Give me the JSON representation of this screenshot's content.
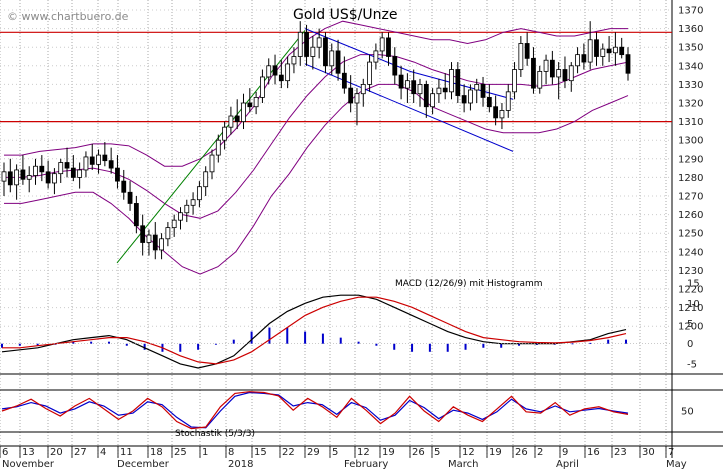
{
  "chart_data": {
    "type": "candlestick",
    "watermark": "© www.chartbuero.de",
    "title": "Gold US$/Unze",
    "y_axis": {
      "ticks": [
        1200,
        1210,
        1220,
        1230,
        1240,
        1250,
        1260,
        1270,
        1280,
        1290,
        1300,
        1310,
        1320,
        1330,
        1340,
        1350,
        1360,
        1370
      ],
      "range": [
        1198,
        1373
      ]
    },
    "horizontal_lines": [
      1358,
      1310
    ],
    "x_day_labels": [
      "6",
      "13",
      "20",
      "27",
      "4",
      "11",
      "18",
      "25",
      "1",
      "8",
      "15",
      "22",
      "29",
      "5",
      "12",
      "19",
      "26",
      "5",
      "12",
      "19",
      "26",
      "2",
      "9",
      "16",
      "23",
      "30",
      "7"
    ],
    "x_month_labels": [
      "November",
      "December",
      "2018",
      "February",
      "March",
      "April",
      "May"
    ],
    "candles": [
      {
        "o": 1278,
        "h": 1288,
        "l": 1270,
        "c": 1283
      },
      {
        "o": 1283,
        "h": 1290,
        "l": 1272,
        "c": 1276
      },
      {
        "o": 1276,
        "h": 1287,
        "l": 1268,
        "c": 1284
      },
      {
        "o": 1284,
        "h": 1292,
        "l": 1276,
        "c": 1279
      },
      {
        "o": 1279,
        "h": 1286,
        "l": 1272,
        "c": 1281
      },
      {
        "o": 1281,
        "h": 1290,
        "l": 1276,
        "c": 1286
      },
      {
        "o": 1286,
        "h": 1292,
        "l": 1278,
        "c": 1283
      },
      {
        "o": 1283,
        "h": 1289,
        "l": 1274,
        "c": 1277
      },
      {
        "o": 1277,
        "h": 1285,
        "l": 1271,
        "c": 1282
      },
      {
        "o": 1282,
        "h": 1290,
        "l": 1277,
        "c": 1288
      },
      {
        "o": 1288,
        "h": 1296,
        "l": 1280,
        "c": 1285
      },
      {
        "o": 1285,
        "h": 1292,
        "l": 1278,
        "c": 1280
      },
      {
        "o": 1280,
        "h": 1288,
        "l": 1274,
        "c": 1284
      },
      {
        "o": 1284,
        "h": 1294,
        "l": 1280,
        "c": 1291
      },
      {
        "o": 1291,
        "h": 1298,
        "l": 1284,
        "c": 1287
      },
      {
        "o": 1287,
        "h": 1295,
        "l": 1282,
        "c": 1292
      },
      {
        "o": 1292,
        "h": 1299,
        "l": 1286,
        "c": 1289
      },
      {
        "o": 1289,
        "h": 1296,
        "l": 1282,
        "c": 1285
      },
      {
        "o": 1285,
        "h": 1292,
        "l": 1274,
        "c": 1278
      },
      {
        "o": 1278,
        "h": 1284,
        "l": 1268,
        "c": 1272
      },
      {
        "o": 1272,
        "h": 1278,
        "l": 1262,
        "c": 1266
      },
      {
        "o": 1266,
        "h": 1270,
        "l": 1250,
        "c": 1254
      },
      {
        "o": 1254,
        "h": 1260,
        "l": 1238,
        "c": 1245
      },
      {
        "o": 1245,
        "h": 1252,
        "l": 1238,
        "c": 1249
      },
      {
        "o": 1249,
        "h": 1256,
        "l": 1236,
        "c": 1241
      },
      {
        "o": 1241,
        "h": 1250,
        "l": 1236,
        "c": 1247
      },
      {
        "o": 1247,
        "h": 1256,
        "l": 1243,
        "c": 1253
      },
      {
        "o": 1253,
        "h": 1260,
        "l": 1248,
        "c": 1257
      },
      {
        "o": 1257,
        "h": 1264,
        "l": 1252,
        "c": 1261
      },
      {
        "o": 1261,
        "h": 1268,
        "l": 1256,
        "c": 1265
      },
      {
        "o": 1265,
        "h": 1272,
        "l": 1260,
        "c": 1268
      },
      {
        "o": 1268,
        "h": 1278,
        "l": 1264,
        "c": 1275
      },
      {
        "o": 1275,
        "h": 1286,
        "l": 1270,
        "c": 1283
      },
      {
        "o": 1283,
        "h": 1295,
        "l": 1279,
        "c": 1292
      },
      {
        "o": 1292,
        "h": 1303,
        "l": 1288,
        "c": 1300
      },
      {
        "o": 1300,
        "h": 1310,
        "l": 1295,
        "c": 1307
      },
      {
        "o": 1307,
        "h": 1318,
        "l": 1303,
        "c": 1313
      },
      {
        "o": 1313,
        "h": 1322,
        "l": 1306,
        "c": 1310
      },
      {
        "o": 1310,
        "h": 1325,
        "l": 1306,
        "c": 1320
      },
      {
        "o": 1320,
        "h": 1328,
        "l": 1315,
        "c": 1318
      },
      {
        "o": 1318,
        "h": 1326,
        "l": 1314,
        "c": 1323
      },
      {
        "o": 1323,
        "h": 1338,
        "l": 1320,
        "c": 1334
      },
      {
        "o": 1334,
        "h": 1344,
        "l": 1330,
        "c": 1340
      },
      {
        "o": 1340,
        "h": 1346,
        "l": 1330,
        "c": 1335
      },
      {
        "o": 1335,
        "h": 1343,
        "l": 1328,
        "c": 1332
      },
      {
        "o": 1332,
        "h": 1345,
        "l": 1328,
        "c": 1341
      },
      {
        "o": 1341,
        "h": 1350,
        "l": 1336,
        "c": 1345
      },
      {
        "o": 1345,
        "h": 1364,
        "l": 1340,
        "c": 1358
      },
      {
        "o": 1358,
        "h": 1362,
        "l": 1340,
        "c": 1345
      },
      {
        "o": 1345,
        "h": 1356,
        "l": 1338,
        "c": 1350
      },
      {
        "o": 1350,
        "h": 1360,
        "l": 1344,
        "c": 1355
      },
      {
        "o": 1355,
        "h": 1358,
        "l": 1336,
        "c": 1340
      },
      {
        "o": 1340,
        "h": 1352,
        "l": 1335,
        "c": 1348
      },
      {
        "o": 1348,
        "h": 1354,
        "l": 1332,
        "c": 1336
      },
      {
        "o": 1336,
        "h": 1345,
        "l": 1325,
        "c": 1328
      },
      {
        "o": 1328,
        "h": 1335,
        "l": 1315,
        "c": 1320
      },
      {
        "o": 1320,
        "h": 1328,
        "l": 1308,
        "c": 1325
      },
      {
        "o": 1325,
        "h": 1333,
        "l": 1318,
        "c": 1330
      },
      {
        "o": 1330,
        "h": 1346,
        "l": 1326,
        "c": 1342
      },
      {
        "o": 1342,
        "h": 1352,
        "l": 1338,
        "c": 1348
      },
      {
        "o": 1348,
        "h": 1358,
        "l": 1344,
        "c": 1355
      },
      {
        "o": 1355,
        "h": 1358,
        "l": 1340,
        "c": 1345
      },
      {
        "o": 1345,
        "h": 1350,
        "l": 1330,
        "c": 1335
      },
      {
        "o": 1335,
        "h": 1340,
        "l": 1322,
        "c": 1328
      },
      {
        "o": 1328,
        "h": 1336,
        "l": 1320,
        "c": 1332
      },
      {
        "o": 1332,
        "h": 1338,
        "l": 1320,
        "c": 1325
      },
      {
        "o": 1325,
        "h": 1333,
        "l": 1318,
        "c": 1330
      },
      {
        "o": 1330,
        "h": 1332,
        "l": 1312,
        "c": 1318
      },
      {
        "o": 1318,
        "h": 1328,
        "l": 1314,
        "c": 1325
      },
      {
        "o": 1325,
        "h": 1333,
        "l": 1320,
        "c": 1328
      },
      {
        "o": 1328,
        "h": 1336,
        "l": 1322,
        "c": 1326
      },
      {
        "o": 1326,
        "h": 1342,
        "l": 1322,
        "c": 1338
      },
      {
        "o": 1338,
        "h": 1342,
        "l": 1320,
        "c": 1324
      },
      {
        "o": 1324,
        "h": 1330,
        "l": 1315,
        "c": 1320
      },
      {
        "o": 1320,
        "h": 1330,
        "l": 1316,
        "c": 1327
      },
      {
        "o": 1327,
        "h": 1333,
        "l": 1320,
        "c": 1330
      },
      {
        "o": 1330,
        "h": 1334,
        "l": 1318,
        "c": 1323
      },
      {
        "o": 1323,
        "h": 1330,
        "l": 1315,
        "c": 1318
      },
      {
        "o": 1318,
        "h": 1324,
        "l": 1308,
        "c": 1312
      },
      {
        "o": 1312,
        "h": 1320,
        "l": 1306,
        "c": 1316
      },
      {
        "o": 1316,
        "h": 1330,
        "l": 1312,
        "c": 1326
      },
      {
        "o": 1326,
        "h": 1342,
        "l": 1322,
        "c": 1338
      },
      {
        "o": 1338,
        "h": 1356,
        "l": 1334,
        "c": 1352
      },
      {
        "o": 1352,
        "h": 1358,
        "l": 1340,
        "c": 1344
      },
      {
        "o": 1344,
        "h": 1350,
        "l": 1325,
        "c": 1328
      },
      {
        "o": 1328,
        "h": 1340,
        "l": 1325,
        "c": 1337
      },
      {
        "o": 1337,
        "h": 1346,
        "l": 1330,
        "c": 1343
      },
      {
        "o": 1343,
        "h": 1348,
        "l": 1330,
        "c": 1334
      },
      {
        "o": 1334,
        "h": 1342,
        "l": 1322,
        "c": 1338
      },
      {
        "o": 1338,
        "h": 1345,
        "l": 1328,
        "c": 1332
      },
      {
        "o": 1332,
        "h": 1342,
        "l": 1326,
        "c": 1340
      },
      {
        "o": 1340,
        "h": 1350,
        "l": 1336,
        "c": 1346
      },
      {
        "o": 1346,
        "h": 1352,
        "l": 1338,
        "c": 1342
      },
      {
        "o": 1342,
        "h": 1364,
        "l": 1338,
        "c": 1354
      },
      {
        "o": 1354,
        "h": 1358,
        "l": 1340,
        "c": 1345
      },
      {
        "o": 1345,
        "h": 1352,
        "l": 1340,
        "c": 1349
      },
      {
        "o": 1349,
        "h": 1356,
        "l": 1342,
        "c": 1347
      },
      {
        "o": 1347,
        "h": 1358,
        "l": 1340,
        "c": 1350
      },
      {
        "o": 1350,
        "h": 1355,
        "l": 1344,
        "c": 1346
      },
      {
        "o": 1346,
        "h": 1350,
        "l": 1332,
        "c": 1336
      }
    ],
    "bollinger": {
      "upper": [
        1292,
        1292,
        1294,
        1295,
        1296,
        1298,
        1298,
        1297,
        1292,
        1286,
        1286,
        1290,
        1296,
        1306,
        1318,
        1334,
        1346,
        1354,
        1360,
        1364,
        1362,
        1360,
        1358,
        1356,
        1354,
        1354,
        1352,
        1354,
        1358,
        1360,
        1358,
        1356,
        1356,
        1358,
        1360,
        1360
      ],
      "middle": [
        1280,
        1280,
        1281,
        1283,
        1284,
        1285,
        1283,
        1279,
        1273,
        1266,
        1260,
        1258,
        1262,
        1272,
        1284,
        1298,
        1312,
        1324,
        1334,
        1342,
        1346,
        1346,
        1345,
        1342,
        1338,
        1335,
        1332,
        1330,
        1330,
        1330,
        1329,
        1330,
        1334,
        1338,
        1340,
        1342
      ],
      "lower": [
        1266,
        1266,
        1268,
        1270,
        1272,
        1272,
        1266,
        1258,
        1248,
        1240,
        1232,
        1228,
        1232,
        1240,
        1254,
        1270,
        1282,
        1296,
        1308,
        1318,
        1326,
        1330,
        1330,
        1326,
        1318,
        1314,
        1310,
        1306,
        1304,
        1304,
        1304,
        1306,
        1310,
        1316,
        1320,
        1324
      ]
    },
    "trendlines": [
      {
        "color": "#008000",
        "from": {
          "date": "11 December",
          "value": 1234
        },
        "to": {
          "date": "29 January",
          "value": 1359
        }
      },
      {
        "color": "#0000cc",
        "from": {
          "date": "29 January",
          "value": 1360
        },
        "to": {
          "date": "26 February",
          "value": 1337
        }
      },
      {
        "color": "#0000cc",
        "from": {
          "date": "29 January",
          "value": 1341
        },
        "to": {
          "date": "26 March",
          "value": 1294
        }
      },
      {
        "color": "#0000cc",
        "from": {
          "date": "26 February",
          "value": 1337
        },
        "to": {
          "date": "26 March",
          "value": 1322
        }
      }
    ],
    "macd": {
      "label": "MACD (12/26/9) mit Histogramm",
      "ticks": [
        "15",
        "10",
        "5",
        "0",
        "-5"
      ],
      "range": [
        -7,
        17
      ],
      "macd_line": [
        -2,
        -1.5,
        -1,
        0,
        1,
        1.5,
        2,
        1,
        -1,
        -3,
        -5,
        -6,
        -5,
        -3,
        1,
        5,
        8,
        10,
        11.5,
        12,
        12,
        11,
        9,
        7,
        5,
        3,
        1.5,
        0.5,
        0,
        0,
        0,
        0,
        0.5,
        1,
        2.5,
        3.5
      ],
      "signal_line": [
        -1,
        -1,
        -0.5,
        0,
        0.5,
        1,
        1.5,
        1.5,
        0.5,
        -1,
        -3,
        -4.5,
        -5,
        -4,
        -2,
        1,
        4,
        7,
        9,
        10.5,
        11.5,
        11.5,
        10.5,
        9,
        7,
        5,
        3,
        1.5,
        1,
        0.5,
        0.3,
        0.2,
        0.4,
        0.8,
        1.5,
        2.5
      ],
      "histogram": [
        -1,
        -0.5,
        -0.5,
        0,
        0.5,
        0.5,
        0.5,
        -0.5,
        -1.5,
        -2,
        -2,
        -1.5,
        0,
        1,
        3,
        4,
        4,
        3,
        2.5,
        1.5,
        0.5,
        -0.5,
        -1.5,
        -2,
        -2,
        -2,
        -1.5,
        -1,
        -1,
        -0.5,
        -0.3,
        -0.2,
        0.1,
        0.2,
        1,
        1
      ]
    },
    "stochastic": {
      "label": "Stochastik (5/3/3)",
      "ticks": [
        "50"
      ],
      "range": [
        0,
        100
      ],
      "k_line": [
        50,
        62,
        78,
        56,
        38,
        62,
        80,
        55,
        30,
        50,
        80,
        60,
        25,
        8,
        12,
        60,
        92,
        96,
        94,
        86,
        52,
        80,
        60,
        35,
        80,
        52,
        20,
        45,
        85,
        50,
        25,
        60,
        40,
        25,
        55,
        85,
        48,
        45,
        70,
        40,
        55,
        60,
        48,
        42
      ],
      "d_line": [
        55,
        60,
        70,
        62,
        45,
        55,
        72,
        62,
        40,
        45,
        72,
        65,
        35,
        12,
        10,
        50,
        85,
        94,
        92,
        88,
        62,
        70,
        65,
        42,
        70,
        58,
        28,
        40,
        75,
        58,
        32,
        52,
        45,
        30,
        48,
        78,
        55,
        48,
        62,
        48,
        52,
        56,
        50,
        45
      ]
    }
  }
}
